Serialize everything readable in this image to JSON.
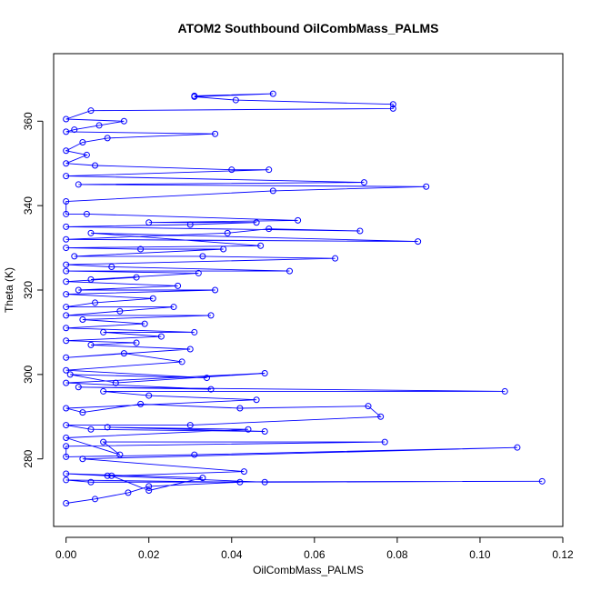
{
  "chart_data": {
    "type": "scatter",
    "title": "ATOM2 Southbound OilCombMass_PALMS",
    "xlabel": "OilCombMass_PALMS",
    "ylabel": "Theta (K)",
    "xlim": [
      -0.003,
      0.12
    ],
    "ylim": [
      264,
      376
    ],
    "xticks": [
      "0.00",
      "0.02",
      "0.04",
      "0.06",
      "0.08",
      "0.10",
      "0.12"
    ],
    "yticks": [
      "280",
      "300",
      "320",
      "340",
      "360"
    ],
    "grid": false,
    "legend": "none",
    "color": "#0000ff",
    "series": [
      {
        "mode": "lines+markers",
        "points": [
          [
            0.0,
            269.5
          ],
          [
            0.007,
            270.5
          ],
          [
            0.015,
            272
          ],
          [
            0.02,
            273.5
          ],
          [
            0.042,
            274.5
          ],
          [
            0.0,
            275
          ],
          [
            0.006,
            274.5
          ],
          [
            0.115,
            274.7
          ],
          [
            0.048,
            274.5
          ],
          [
            0.01,
            276
          ],
          [
            0.0,
            276.5
          ],
          [
            0.033,
            275.5
          ],
          [
            0.02,
            272.5
          ],
          [
            0.011,
            276
          ],
          [
            0.043,
            277
          ],
          [
            0.004,
            280
          ],
          [
            0.109,
            282.7
          ],
          [
            0.031,
            281
          ],
          [
            0.0,
            280.5
          ],
          [
            0.0,
            283
          ],
          [
            0.077,
            284
          ],
          [
            0.009,
            284
          ],
          [
            0.013,
            281
          ],
          [
            0.0,
            285
          ],
          [
            0.044,
            287
          ],
          [
            0.01,
            287.5
          ],
          [
            0.048,
            286.5
          ],
          [
            0.006,
            287
          ],
          [
            0.0,
            288
          ],
          [
            0.03,
            288
          ],
          [
            0.076,
            290
          ],
          [
            0.073,
            292.5
          ],
          [
            0.042,
            292
          ],
          [
            0.018,
            293
          ],
          [
            0.004,
            291
          ],
          [
            0.0,
            292
          ],
          [
            0.046,
            294
          ],
          [
            0.02,
            295
          ],
          [
            0.009,
            296
          ],
          [
            0.106,
            296
          ],
          [
            0.003,
            297
          ],
          [
            0.035,
            296.5
          ],
          [
            0.0,
            298
          ],
          [
            0.048,
            300.3
          ],
          [
            0.012,
            298
          ],
          [
            0.001,
            300
          ],
          [
            0.034,
            299.2
          ],
          [
            0.0,
            301
          ],
          [
            0.028,
            303
          ],
          [
            0.014,
            305
          ],
          [
            0.0,
            304
          ],
          [
            0.03,
            306
          ],
          [
            0.006,
            307
          ],
          [
            0.017,
            307.5
          ],
          [
            0.0,
            308
          ],
          [
            0.023,
            309
          ],
          [
            0.009,
            310
          ],
          [
            0.031,
            310
          ],
          [
            0.0,
            311
          ],
          [
            0.019,
            312
          ],
          [
            0.004,
            313
          ],
          [
            0.035,
            314
          ],
          [
            0.0,
            314
          ],
          [
            0.013,
            315
          ],
          [
            0.026,
            316
          ],
          [
            0.0,
            316
          ],
          [
            0.007,
            317
          ],
          [
            0.021,
            318
          ],
          [
            0.0,
            319
          ],
          [
            0.036,
            320
          ],
          [
            0.003,
            320
          ],
          [
            0.027,
            321
          ],
          [
            0.0,
            322
          ],
          [
            0.017,
            323
          ],
          [
            0.006,
            322.5
          ],
          [
            0.032,
            324
          ],
          [
            0.0,
            324.5
          ],
          [
            0.054,
            324.5
          ],
          [
            0.011,
            325.5
          ],
          [
            0.0,
            326
          ],
          [
            0.065,
            327.5
          ],
          [
            0.033,
            328
          ],
          [
            0.002,
            328
          ],
          [
            0.038,
            329.7
          ],
          [
            0.018,
            329.7
          ],
          [
            0.0,
            330
          ],
          [
            0.047,
            330.5
          ],
          [
            0.006,
            333.5
          ],
          [
            0.085,
            331.5
          ],
          [
            0.0,
            332
          ],
          [
            0.039,
            333.5
          ],
          [
            0.049,
            334.5
          ],
          [
            0.071,
            334
          ],
          [
            0.0,
            335
          ],
          [
            0.03,
            335.5
          ],
          [
            0.046,
            336
          ],
          [
            0.02,
            336
          ],
          [
            0.056,
            336.5
          ],
          [
            0.005,
            338
          ],
          [
            0.0,
            338
          ],
          [
            0.0,
            341
          ],
          [
            0.05,
            343.5
          ],
          [
            0.087,
            344.5
          ],
          [
            0.003,
            345
          ],
          [
            0.072,
            345.5
          ],
          [
            0.0,
            347
          ],
          [
            0.049,
            348.5
          ],
          [
            0.04,
            348.5
          ],
          [
            0.007,
            349.5
          ],
          [
            0.0,
            350
          ],
          [
            0.005,
            352
          ],
          [
            0.0,
            353
          ],
          [
            0.004,
            355
          ],
          [
            0.01,
            356
          ],
          [
            0.036,
            357
          ],
          [
            0.0,
            357.5
          ],
          [
            0.002,
            358
          ],
          [
            0.008,
            359
          ],
          [
            0.014,
            360
          ],
          [
            0.0,
            360.5
          ],
          [
            0.006,
            362.5
          ],
          [
            0.079,
            363
          ],
          [
            0.079,
            364
          ],
          [
            0.041,
            365
          ],
          [
            0.031,
            365.8
          ],
          [
            0.05,
            366.5
          ],
          [
            0.031,
            366
          ]
        ]
      }
    ]
  }
}
